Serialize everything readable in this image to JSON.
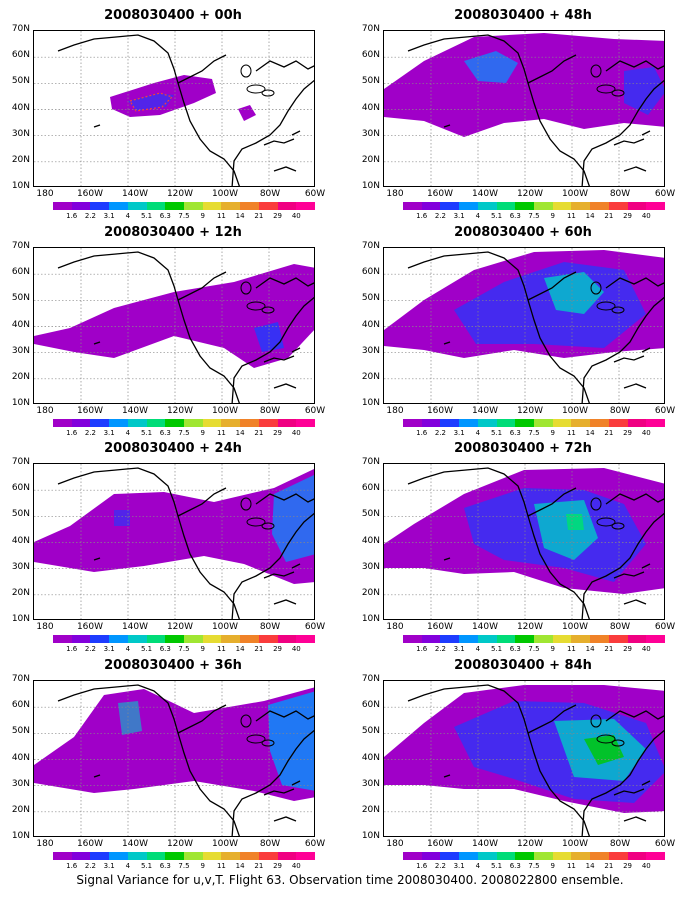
{
  "panels": [
    {
      "title": "2008030400 + 00h",
      "lead": "00h"
    },
    {
      "title": "2008030400 + 48h",
      "lead": "48h"
    },
    {
      "title": "2008030400 + 12h",
      "lead": "12h"
    },
    {
      "title": "2008030400 + 60h",
      "lead": "60h"
    },
    {
      "title": "2008030400 + 24h",
      "lead": "24h"
    },
    {
      "title": "2008030400 + 72h",
      "lead": "72h"
    },
    {
      "title": "2008030400 + 36h",
      "lead": "36h"
    },
    {
      "title": "2008030400 + 84h",
      "lead": "84h"
    }
  ],
  "lat_labels": [
    "70N",
    "60N",
    "50N",
    "40N",
    "30N",
    "20N",
    "10N"
  ],
  "lon_labels": [
    "180",
    "160W",
    "140W",
    "120W",
    "100W",
    "80W",
    "60W"
  ],
  "colorbar": {
    "labels": [
      "1.6",
      "2.2",
      "3.1",
      "4",
      "5.1",
      "6.3",
      "7.5",
      "9",
      "11",
      "14",
      "21",
      "29",
      "40"
    ],
    "colors": [
      "#a000c8",
      "#8200dc",
      "#1e3cff",
      "#0096ff",
      "#00c8c8",
      "#00dc78",
      "#00c800",
      "#a0e632",
      "#e6dc32",
      "#e6af2d",
      "#f08228",
      "#fa3c3c",
      "#f00082",
      "#ff0096"
    ]
  },
  "caption": "Signal Variance for u,v,T. Flight 63. Observation time 2008030400. 2008022800 ensemble."
}
